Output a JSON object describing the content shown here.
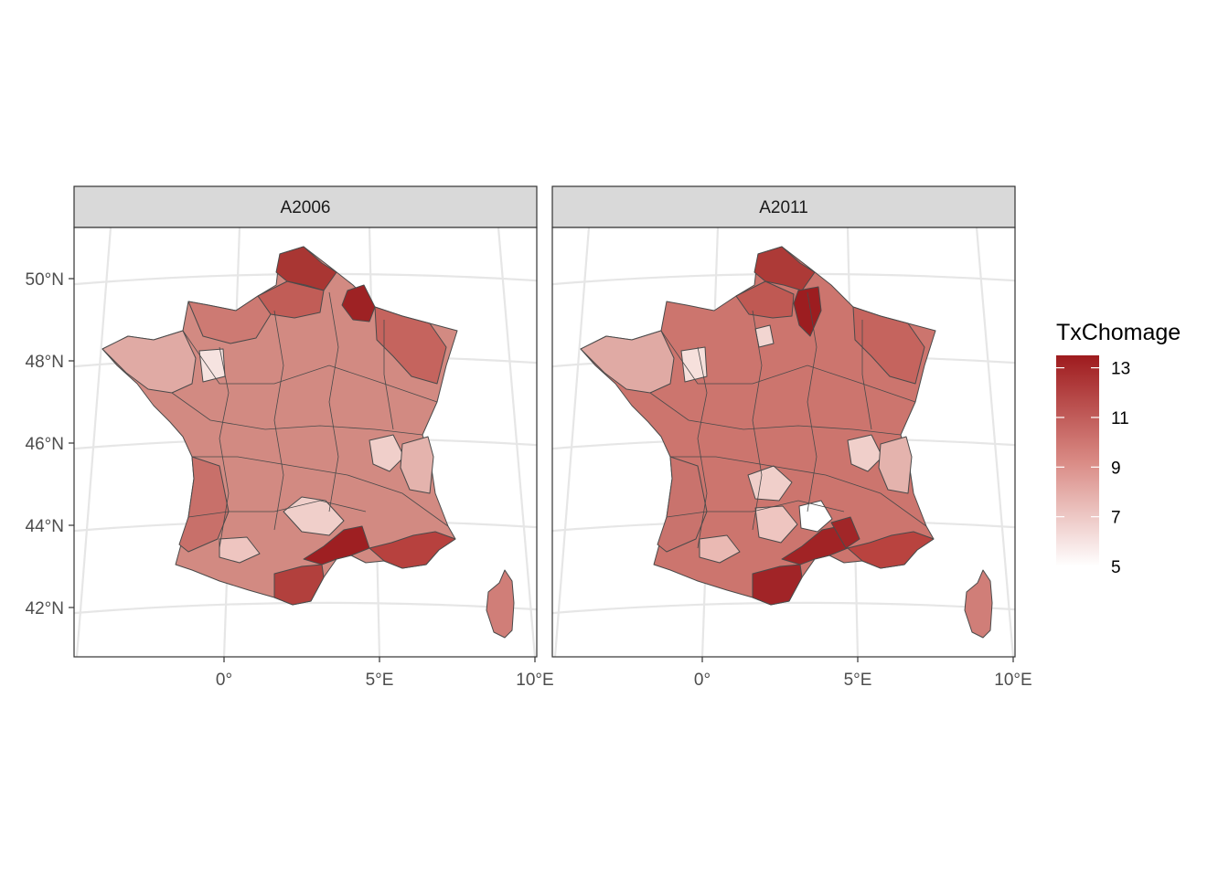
{
  "chart_data": {
    "type": "choropleth",
    "fill_variable": "TxChomage",
    "legend": {
      "title": "TxChomage",
      "breaks": [
        5,
        7,
        9,
        11,
        13
      ],
      "labels": [
        "5",
        "7",
        "9",
        "11",
        "13"
      ],
      "range": [
        5,
        13.5
      ],
      "color_low": "#ffffff",
      "color_high": "#9e1b1e",
      "placement": "right"
    },
    "x_axis": {
      "ticks": [
        "0°",
        "5°E",
        "10°E"
      ]
    },
    "y_axis": {
      "ticks": [
        "50°N",
        "48°N",
        "46°N",
        "44°N",
        "42°N"
      ]
    },
    "grid": true,
    "panels": [
      {
        "label": "A2006",
        "regions": {
          "Nord": 13.0,
          "Pas-de-Calais": 12.5,
          "Aisne": 12.0,
          "Ardennes": 13.2,
          "Somme": 11.5,
          "Seine-Maritime": 11.0,
          "Bouches-du-Rhone": 12.2,
          "Herault": 13.2,
          "Gard": 12.8,
          "Pyrenees-Orientales": 12.5,
          "Aude": 12.0,
          "Vaucluse": 11.5,
          "Var": 11.0,
          "Corse": 10.5
        }
      },
      {
        "label": "A2011",
        "regions": {
          "Nord": 12.8,
          "Pas-de-Calais": 12.5,
          "Aisne": 13.5,
          "Ardennes": 12.5,
          "Somme": 11.5,
          "Seine-Maritime": 11.0,
          "Bouches-du-Rhone": 12.0,
          "Herault": 13.0,
          "Gard": 12.8,
          "Pyrenees-Orientales": 13.0,
          "Aude": 12.5,
          "Vaucluse": 11.8,
          "Var": 11.0,
          "Lozere": 5.0,
          "Corse": 10.5
        }
      }
    ]
  }
}
